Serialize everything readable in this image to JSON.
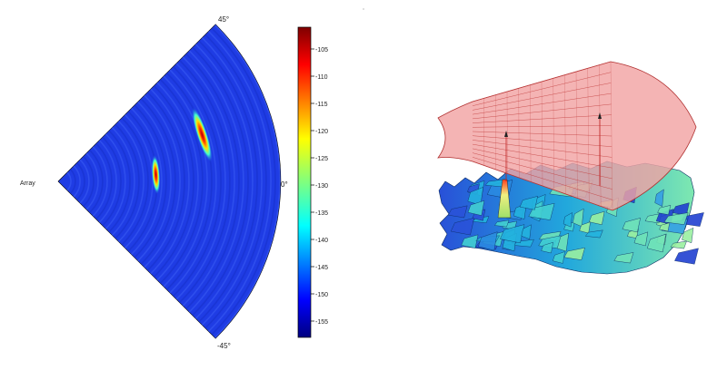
{
  "chart_data": [
    {
      "type": "heatmap",
      "title": "",
      "array_label": "Array",
      "angle_labels": {
        "top": "45°",
        "middle": "0°",
        "bottom": "-45°"
      },
      "angle_range_deg": [
        -45,
        45
      ],
      "colorbar": {
        "ticks": [
          "-105",
          "-110",
          "-115",
          "-120",
          "-125",
          "-130",
          "-135",
          "-140",
          "-145",
          "-150",
          "-155"
        ],
        "range": [
          -158,
          -101
        ]
      },
      "background_value": -155,
      "targets": [
        {
          "angle_deg": 4,
          "range_frac": 0.44,
          "peak_value": -105
        },
        {
          "angle_deg": 18,
          "range_frac": 0.68,
          "peak_value": -108
        }
      ]
    },
    {
      "type": "surface",
      "title": "",
      "colors": {
        "top_surface": "#f4a0a0",
        "top_grid": "#c83c3c",
        "bottom_low": "#1f3fd8",
        "bottom_mid": "#21b4e0",
        "bottom_high": "#9cf0a0",
        "peak": "#e8f07a"
      }
    }
  ]
}
